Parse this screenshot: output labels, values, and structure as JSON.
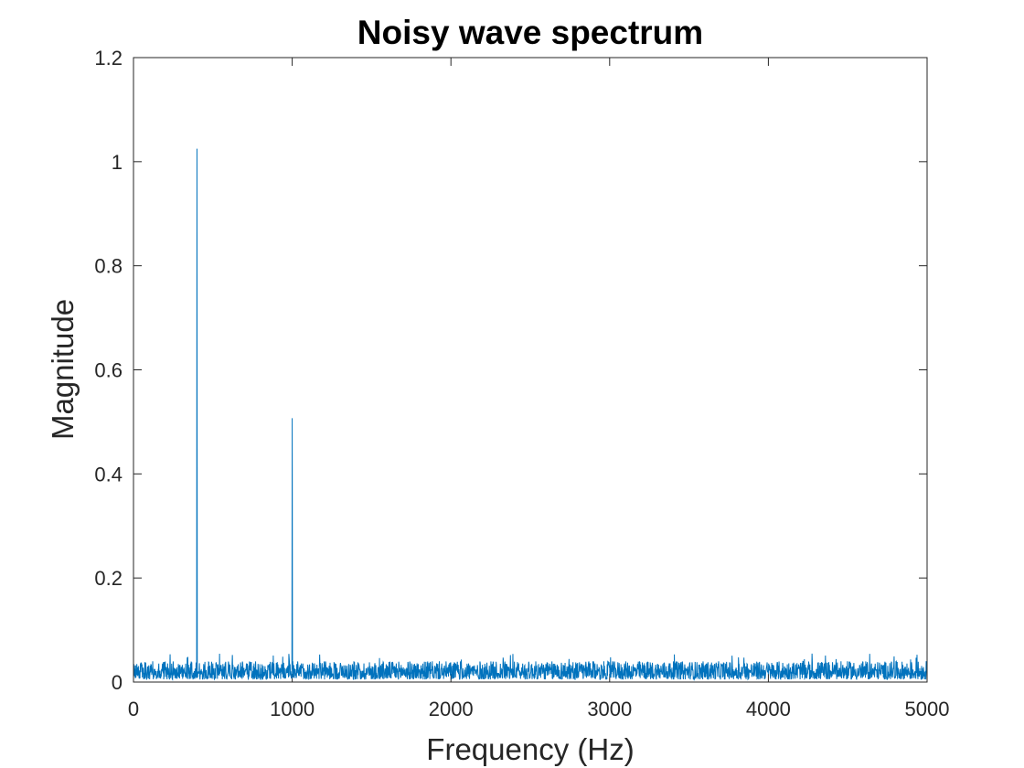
{
  "chart_data": {
    "type": "line",
    "title": "Noisy wave spectrum",
    "xlabel": "Frequency (Hz)",
    "ylabel": "Magnitude",
    "xlim": [
      0,
      5000
    ],
    "ylim": [
      0,
      1.2
    ],
    "x_ticks": [
      0,
      1000,
      2000,
      3000,
      4000,
      5000
    ],
    "x_tick_labels": [
      "0",
      "1000",
      "2000",
      "3000",
      "4000",
      "5000"
    ],
    "y_ticks": [
      0,
      0.2,
      0.4,
      0.6,
      0.8,
      1.0,
      1.2
    ],
    "y_tick_labels": [
      "0",
      "0.2",
      "0.4",
      "0.6",
      "0.8",
      "1",
      "1.2"
    ],
    "grid": false,
    "line_color": "#0072BD",
    "noise_floor": {
      "typical_min": 0.005,
      "typical_max": 0.04,
      "max": 0.055
    },
    "peaks": [
      {
        "x": 400,
        "y": 1.025
      },
      {
        "x": 1000,
        "y": 0.507
      }
    ]
  }
}
